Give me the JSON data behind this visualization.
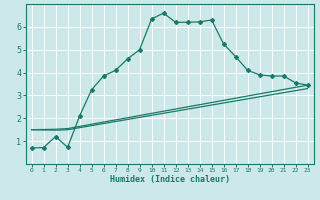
{
  "xlabel": "Humidex (Indice chaleur)",
  "bg_color": "#cce8e8",
  "grid_color": "#ffffff",
  "line_color": "#1a7a6a",
  "xlim": [
    -0.5,
    23.5
  ],
  "ylim": [
    0,
    7
  ],
  "xticks": [
    0,
    1,
    2,
    3,
    4,
    5,
    6,
    7,
    8,
    9,
    10,
    11,
    12,
    13,
    14,
    15,
    16,
    17,
    18,
    19,
    20,
    21,
    22,
    23
  ],
  "yticks": [
    1,
    2,
    3,
    4,
    5,
    6
  ],
  "line1_x": [
    0,
    1,
    2,
    3,
    4,
    5,
    6,
    7,
    8,
    9,
    10,
    11,
    12,
    13,
    14,
    15,
    16,
    17,
    18,
    19,
    20,
    21,
    22,
    23
  ],
  "line1_y": [
    0.7,
    0.72,
    1.2,
    0.73,
    2.1,
    3.25,
    3.85,
    4.1,
    4.6,
    5.0,
    6.35,
    6.6,
    6.2,
    6.2,
    6.22,
    6.3,
    5.25,
    4.7,
    4.1,
    3.9,
    3.85,
    3.85,
    3.55,
    3.45
  ],
  "line2_x": [
    0,
    2,
    3,
    23
  ],
  "line2_y": [
    1.5,
    1.52,
    1.55,
    3.45
  ],
  "line3_x": [
    0,
    2,
    3,
    23
  ],
  "line3_y": [
    1.5,
    1.48,
    1.5,
    3.3
  ],
  "xlabel_fontsize": 6,
  "tick_fontsize_x": 4.5,
  "tick_fontsize_y": 6
}
